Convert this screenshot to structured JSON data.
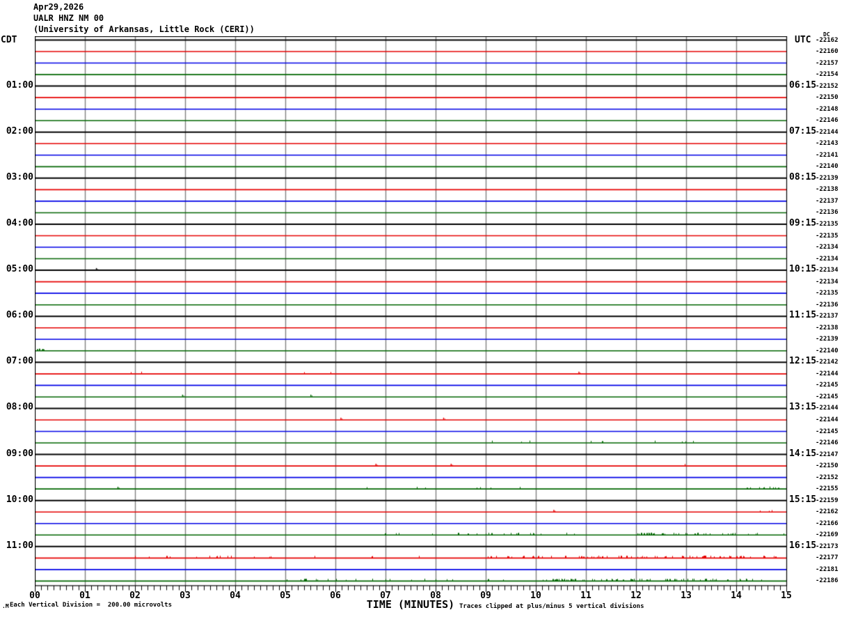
{
  "header": {
    "date": "Apr29,2026",
    "station": "UALR HNZ NM 00",
    "institution": "(University of Arkansas, Little Rock (CERI))"
  },
  "axes": {
    "left_header": "CDT",
    "right_header": "UTC",
    "dc_header": "DC",
    "x_title": "TIME (MINUTES)",
    "x_ticks": [
      "00",
      "01",
      "02",
      "03",
      "04",
      "05",
      "06",
      "07",
      "08",
      "09",
      "10",
      "11",
      "12",
      "13",
      "14",
      "15"
    ],
    "footnote_left": "Each Vertical Division =  200.00 microvolts",
    "footnote_right": "Traces clipped at plus/minus 5 vertical divisions",
    "corner_mark": ".M"
  },
  "colors": {
    "trace_cycle": [
      "#000000",
      "#e60000",
      "#0000e6",
      "#006600"
    ],
    "grid": "#808080",
    "frame": "#000000",
    "background": "#ffffff"
  },
  "chart_data": {
    "type": "line",
    "subtype": "helicorder-seismogram",
    "title": "UALR HNZ NM 00 (University of Arkansas, Little Rock (CERI)) Apr29,2026",
    "xlabel": "TIME (MINUTES)",
    "x_range_minutes": [
      0,
      15
    ],
    "minutes_per_row": 15,
    "rows_total": 48,
    "row_color_cycle": [
      "black",
      "red",
      "blue",
      "green"
    ],
    "vertical_division_microvolts": 200.0,
    "clip_divisions": 5,
    "left_hour_labels_cdt": [
      "01:00",
      "02:00",
      "03:00",
      "04:00",
      "05:00",
      "06:00",
      "07:00",
      "08:00",
      "09:00",
      "10:00",
      "11:00"
    ],
    "right_hour_labels_utc": [
      "06:15",
      "07:15",
      "08:15",
      "09:15",
      "10:15",
      "11:15",
      "12:15",
      "13:15",
      "14:15",
      "15:15",
      "16:15"
    ],
    "hour_label_row_step": 4,
    "hour_label_first_row": 4,
    "dc_offsets": [
      -22162,
      -22160,
      -22157,
      -22154,
      -22152,
      -22150,
      -22148,
      -22146,
      -22144,
      -22143,
      -22141,
      -22140,
      -22139,
      -22138,
      -22137,
      -22136,
      -22135,
      -22135,
      -22134,
      -22134,
      -22134,
      -22134,
      -22135,
      -22136,
      -22137,
      -22138,
      -22139,
      -22140,
      -22142,
      -22144,
      -22145,
      -22145,
      -22144,
      -22144,
      -22145,
      -22146,
      -22147,
      -22150,
      -22152,
      -22155,
      -22159,
      -22162,
      -22166,
      -22169,
      -22173,
      -22177,
      -22181,
      -22186
    ],
    "row_noise": {
      "20": {
        "blips": [
          1.22
        ]
      },
      "27": {
        "bursts": [
          [
            0.02,
            0.2,
            0.5
          ]
        ]
      },
      "29": {
        "bursts": [
          [
            1.6,
            6.4,
            0.015
          ]
        ],
        "blips": [
          10.85
        ]
      },
      "31": {
        "blips": [
          2.94,
          5.5
        ]
      },
      "33": {
        "blips": [
          6.1,
          8.15
        ]
      },
      "35": {
        "bursts": [
          [
            8.6,
            13.5,
            0.02
          ]
        ]
      },
      "37": {
        "blips": [
          6.8,
          8.3
        ],
        "bursts": [
          [
            12.9,
            14.2,
            0.035
          ]
        ]
      },
      "39": {
        "blips": [
          1.65
        ],
        "bursts": [
          [
            6.6,
            11.5,
            0.02
          ],
          [
            14.2,
            15,
            0.08
          ]
        ]
      },
      "41": {
        "blips": [
          10.35
        ],
        "bursts": [
          [
            13.9,
            15,
            0.06
          ]
        ]
      },
      "43": {
        "bursts": [
          [
            6.5,
            12,
            0.045
          ],
          [
            12,
            15,
            0.13
          ]
        ]
      },
      "45": {
        "bursts": [
          [
            1.6,
            9,
            0.03
          ],
          [
            9,
            15,
            0.16
          ]
        ]
      },
      "47": {
        "bursts": [
          [
            5,
            10,
            0.05
          ],
          [
            10,
            15,
            0.2
          ]
        ]
      }
    }
  }
}
